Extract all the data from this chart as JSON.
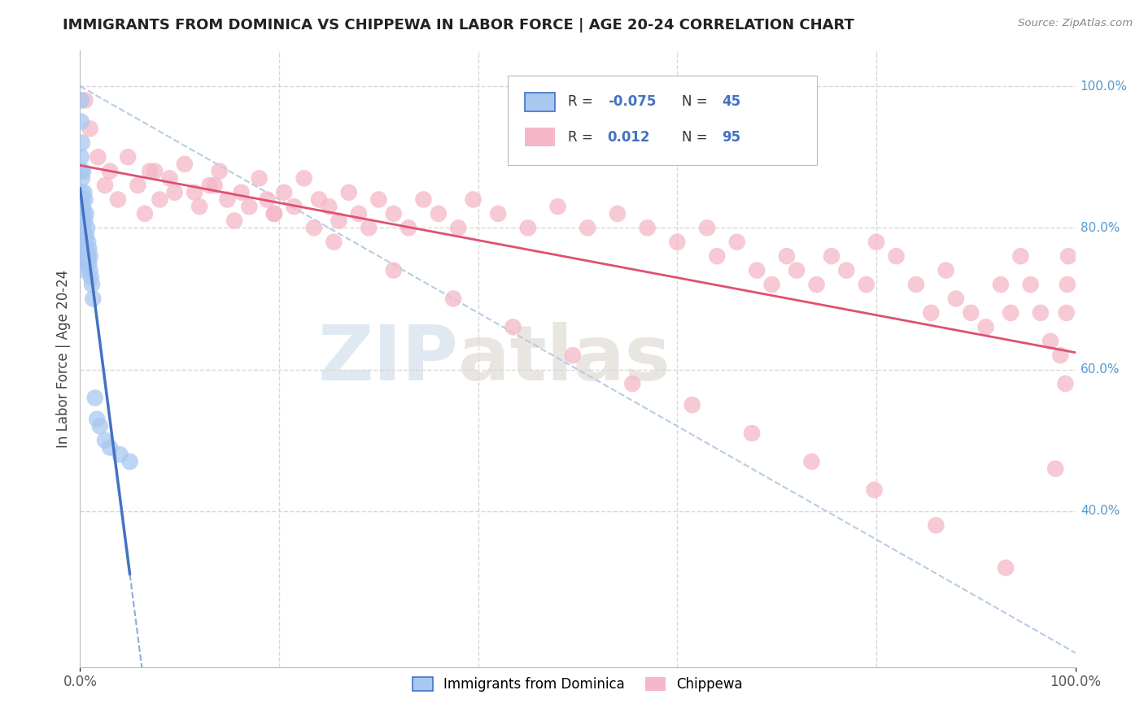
{
  "title": "IMMIGRANTS FROM DOMINICA VS CHIPPEWA IN LABOR FORCE | AGE 20-24 CORRELATION CHART",
  "source": "Source: ZipAtlas.com",
  "ylabel": "In Labor Force | Age 20-24",
  "legend_label1": "Immigrants from Dominica",
  "legend_label2": "Chippewa",
  "R1": -0.075,
  "N1": 45,
  "R2": 0.012,
  "N2": 95,
  "color_dominica": "#a8c8f0",
  "color_chippewa": "#f4b8c8",
  "trendline1_color": "#4472c4",
  "trendline2_color": "#e05070",
  "diagonal_color": "#b8cce4",
  "grid_color": "#d8d8d8",
  "watermark_zip": "ZIP",
  "watermark_atlas": "atlas",
  "xlim": [
    0.0,
    1.0
  ],
  "ylim": [
    0.18,
    1.05
  ],
  "ytick_positions": [
    0.4,
    0.6,
    0.8,
    1.0
  ],
  "ytick_labels": [
    "40.0%",
    "60.0%",
    "80.0%",
    "100.0%"
  ],
  "xtick_positions": [
    0.0,
    1.0
  ],
  "xtick_labels": [
    "0.0%",
    "100.0%"
  ],
  "dominica_x": [
    0.001,
    0.001,
    0.001,
    0.001,
    0.001,
    0.002,
    0.002,
    0.002,
    0.002,
    0.003,
    0.003,
    0.003,
    0.003,
    0.004,
    0.004,
    0.004,
    0.004,
    0.005,
    0.005,
    0.005,
    0.005,
    0.005,
    0.006,
    0.006,
    0.006,
    0.006,
    0.007,
    0.007,
    0.007,
    0.008,
    0.008,
    0.009,
    0.009,
    0.01,
    0.01,
    0.011,
    0.012,
    0.013,
    0.015,
    0.017,
    0.02,
    0.025,
    0.03,
    0.04,
    0.05
  ],
  "dominica_y": [
    0.98,
    0.95,
    0.9,
    0.85,
    0.88,
    0.92,
    0.87,
    0.82,
    0.84,
    0.88,
    0.83,
    0.8,
    0.78,
    0.85,
    0.82,
    0.79,
    0.77,
    0.84,
    0.81,
    0.78,
    0.76,
    0.74,
    0.82,
    0.79,
    0.77,
    0.75,
    0.8,
    0.77,
    0.75,
    0.78,
    0.76,
    0.77,
    0.75,
    0.76,
    0.74,
    0.73,
    0.72,
    0.7,
    0.56,
    0.53,
    0.52,
    0.5,
    0.49,
    0.48,
    0.47
  ],
  "chippewa_x": [
    0.005,
    0.01,
    0.018,
    0.025,
    0.03,
    0.038,
    0.048,
    0.058,
    0.065,
    0.07,
    0.08,
    0.09,
    0.095,
    0.105,
    0.115,
    0.12,
    0.13,
    0.14,
    0.148,
    0.155,
    0.162,
    0.17,
    0.18,
    0.188,
    0.195,
    0.205,
    0.215,
    0.225,
    0.235,
    0.24,
    0.25,
    0.26,
    0.27,
    0.28,
    0.29,
    0.3,
    0.315,
    0.33,
    0.345,
    0.36,
    0.38,
    0.395,
    0.42,
    0.45,
    0.48,
    0.51,
    0.54,
    0.57,
    0.6,
    0.63,
    0.64,
    0.66,
    0.68,
    0.695,
    0.71,
    0.72,
    0.74,
    0.755,
    0.77,
    0.79,
    0.8,
    0.82,
    0.84,
    0.855,
    0.87,
    0.88,
    0.895,
    0.91,
    0.925,
    0.935,
    0.945,
    0.955,
    0.965,
    0.975,
    0.98,
    0.985,
    0.99,
    0.991,
    0.992,
    0.993,
    0.135,
    0.195,
    0.255,
    0.315,
    0.375,
    0.435,
    0.495,
    0.555,
    0.615,
    0.675,
    0.735,
    0.798,
    0.86,
    0.93,
    0.075
  ],
  "chippewa_y": [
    0.98,
    0.94,
    0.9,
    0.86,
    0.88,
    0.84,
    0.9,
    0.86,
    0.82,
    0.88,
    0.84,
    0.87,
    0.85,
    0.89,
    0.85,
    0.83,
    0.86,
    0.88,
    0.84,
    0.81,
    0.85,
    0.83,
    0.87,
    0.84,
    0.82,
    0.85,
    0.83,
    0.87,
    0.8,
    0.84,
    0.83,
    0.81,
    0.85,
    0.82,
    0.8,
    0.84,
    0.82,
    0.8,
    0.84,
    0.82,
    0.8,
    0.84,
    0.82,
    0.8,
    0.83,
    0.8,
    0.82,
    0.8,
    0.78,
    0.8,
    0.76,
    0.78,
    0.74,
    0.72,
    0.76,
    0.74,
    0.72,
    0.76,
    0.74,
    0.72,
    0.78,
    0.76,
    0.72,
    0.68,
    0.74,
    0.7,
    0.68,
    0.66,
    0.72,
    0.68,
    0.76,
    0.72,
    0.68,
    0.64,
    0.46,
    0.62,
    0.58,
    0.68,
    0.72,
    0.76,
    0.86,
    0.82,
    0.78,
    0.74,
    0.7,
    0.66,
    0.62,
    0.58,
    0.55,
    0.51,
    0.47,
    0.43,
    0.38,
    0.32,
    0.88
  ]
}
